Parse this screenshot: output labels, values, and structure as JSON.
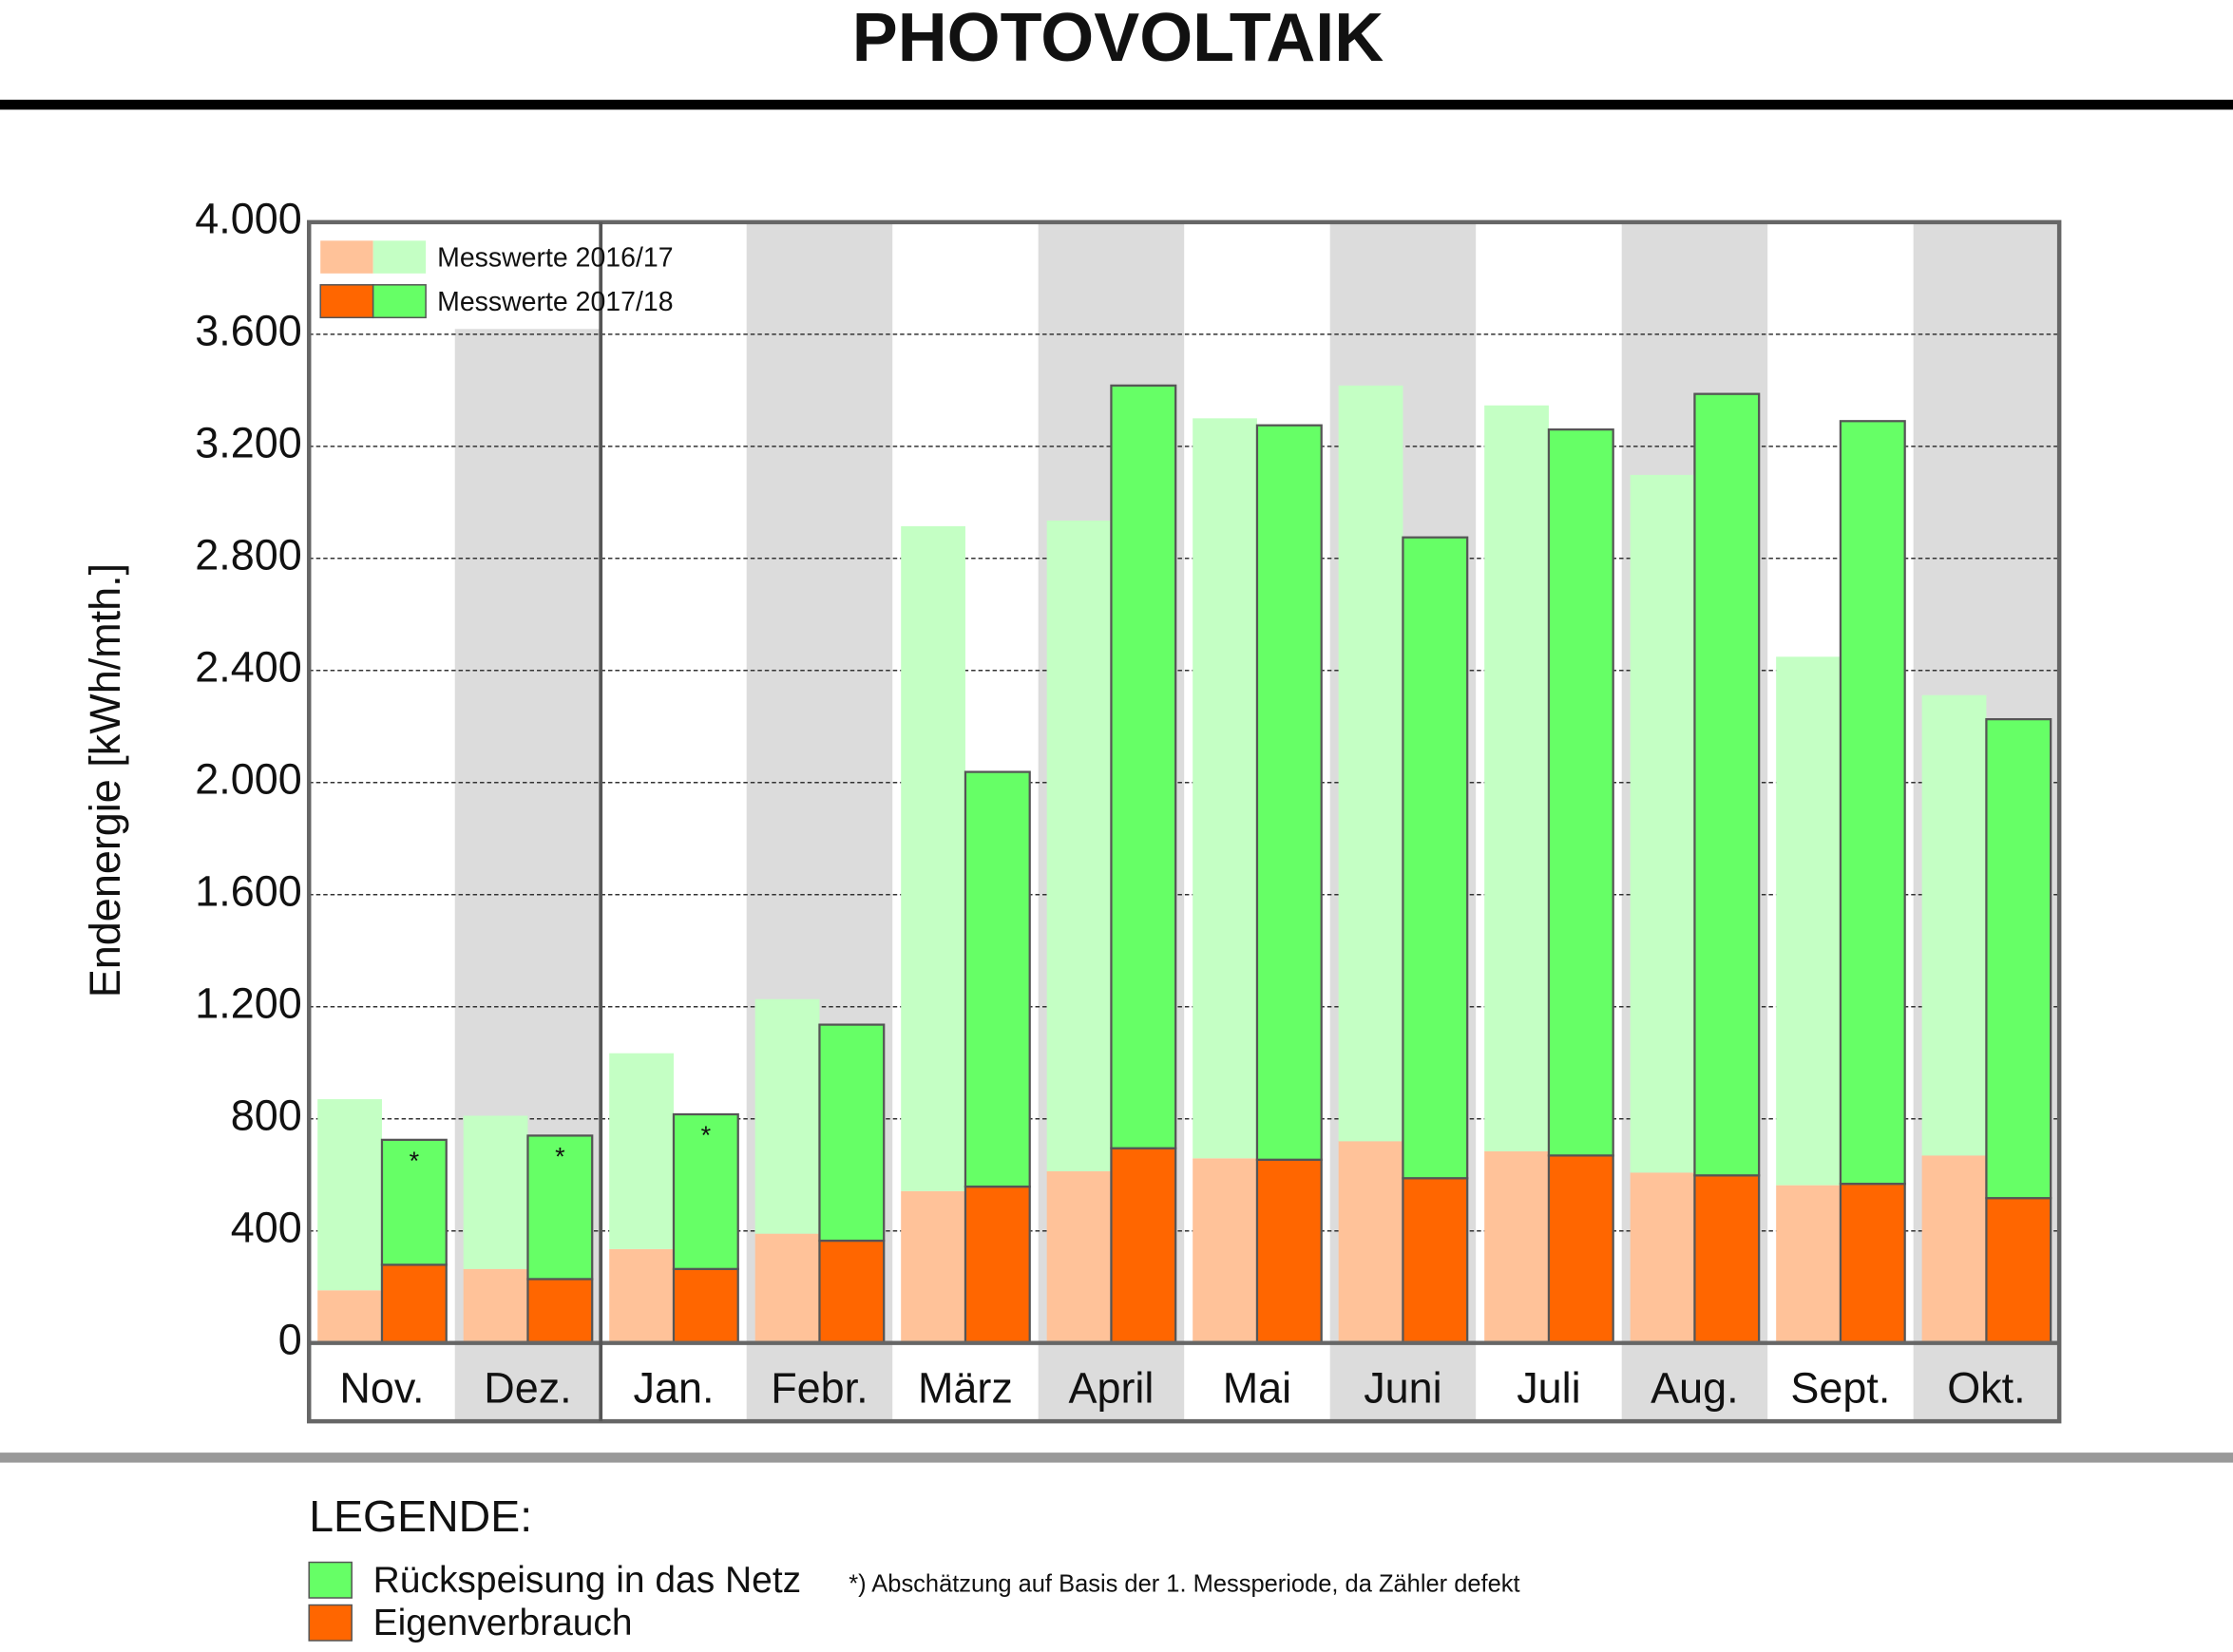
{
  "chart_data": {
    "type": "grouped_stacked_bar",
    "title": "PHOTOVOLTAIK",
    "y_label": "Endenergie [kWh/mth.]",
    "categories": [
      "Nov.",
      "Dez.",
      "Jan.",
      "Febr.",
      "März",
      "April",
      "Mai",
      "Juni",
      "Juli",
      "Aug.",
      "Sept.",
      "Okt."
    ],
    "ylim": [
      0,
      4000
    ],
    "yticks": [
      0,
      400,
      800,
      {
        "value": 1200,
        "label": "1.200"
      },
      {
        "value": 1600,
        "label": "1.600"
      },
      {
        "value": 2000,
        "label": "2.000"
      },
      {
        "value": 2400,
        "label": "2.400"
      },
      {
        "value": 2800,
        "label": "2.800"
      },
      {
        "value": 3200,
        "label": "3.200"
      },
      {
        "value": 3600,
        "label": "3.600"
      },
      {
        "value": 4000,
        "label": "4.000"
      }
    ],
    "grid": true,
    "series": [
      {
        "name": "Messwerte 2016/17",
        "stacks": [
          {
            "color": "#ffc299",
            "values": [
              188,
              264,
              335,
              390,
              542,
              613,
              659,
              720,
              684,
              608,
              563,
              669
            ]
          },
          {
            "color": "#c4ffc4",
            "values": [
              682,
              547,
              699,
              837,
              2373,
              2322,
              2641,
              2697,
              2662,
              2490,
              1886,
              1643
            ]
          }
        ]
      },
      {
        "name": "Messwerte 2017/18",
        "stacks": [
          {
            "color": "#ff6600",
            "values": [
              279,
              228,
              264,
              365,
              558,
              695,
              654,
              588,
              669,
              598,
              568,
              517
            ]
          },
          {
            "color": "#66ff66",
            "values": [
              446,
              512,
              552,
              771,
              1480,
              2722,
              2621,
              2287,
              2591,
              2789,
              2722,
              1709
            ]
          }
        ]
      }
    ],
    "annotations": [
      {
        "category_index": 0,
        "text": "*"
      },
      {
        "category_index": 1,
        "text": "*"
      },
      {
        "category_index": 2,
        "text": "*"
      }
    ],
    "legend_title": "LEGENDE:",
    "legend_items": [
      {
        "name": "Rückspeisung in das Netz",
        "color": "#66ff66"
      },
      {
        "name": "Eigenverbrauch",
        "color": "#ff6600"
      }
    ],
    "footnote": "*) Abschätzung auf Basis der 1. Messperiode, da Zähler defekt"
  }
}
